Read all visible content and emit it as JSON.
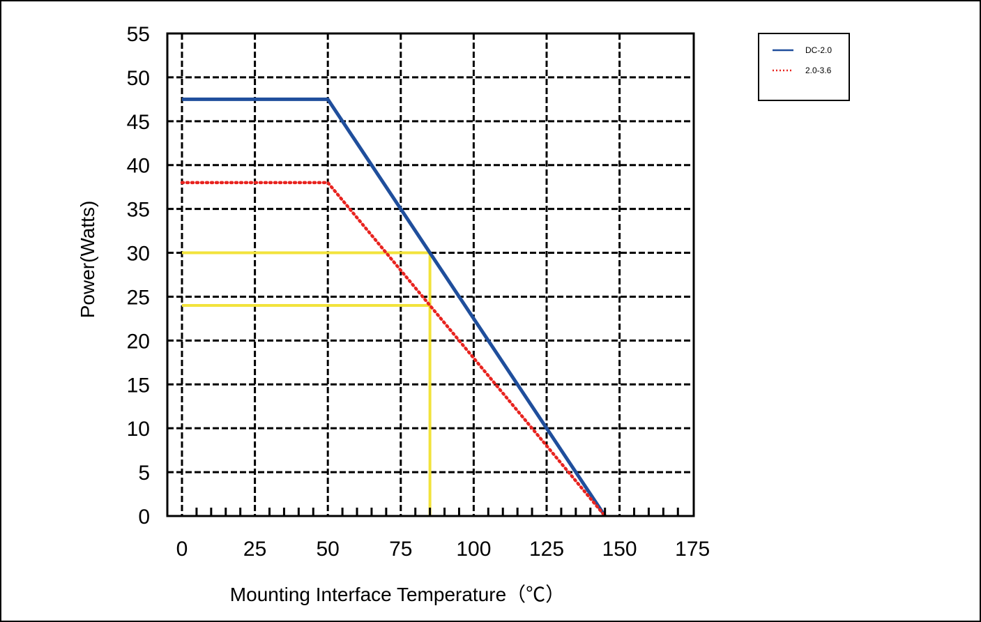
{
  "chart_data": {
    "type": "line",
    "xlabel": "Mounting Interface Temperature（℃）",
    "ylabel": "Power(Watts)",
    "xlim": [
      0,
      175
    ],
    "ylim": [
      0,
      55
    ],
    "x_ticks": [
      0,
      25,
      50,
      75,
      100,
      125,
      150,
      175
    ],
    "y_ticks": [
      0,
      5,
      10,
      15,
      20,
      25,
      30,
      35,
      40,
      45,
      50,
      55
    ],
    "x_minor_step": 5,
    "grid": true,
    "grid_style": "dashed",
    "legend_position": "top-right",
    "series": [
      {
        "name": "DC-2.0",
        "color": "#1f4e9c",
        "style": "solid",
        "x": [
          0,
          50,
          145
        ],
        "y": [
          47.5,
          47.5,
          0
        ]
      },
      {
        "name": "2.0-3.6",
        "color": "#e8231f",
        "style": "dotted",
        "x": [
          0,
          50,
          145
        ],
        "y": [
          38,
          38,
          0
        ]
      }
    ],
    "annotations": [
      {
        "color": "#f2e33c",
        "x": [
          0,
          85,
          85
        ],
        "y": [
          30,
          30,
          0
        ]
      },
      {
        "color": "#f2e33c",
        "x": [
          0,
          85
        ],
        "y": [
          24,
          24
        ]
      }
    ]
  }
}
